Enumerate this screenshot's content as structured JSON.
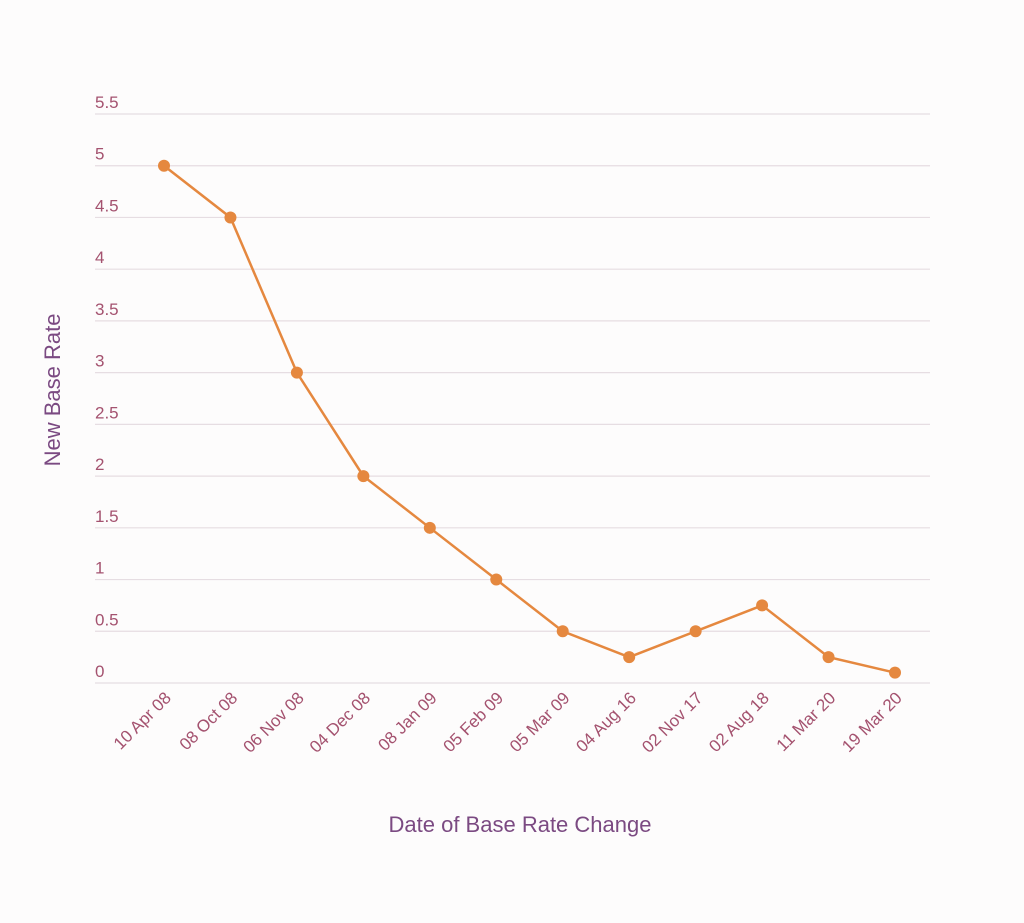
{
  "chart_data": {
    "type": "line",
    "title": "",
    "xlabel": "Date of Base Rate Change",
    "ylabel": "New Base Rate",
    "categories": [
      "10 Apr 08",
      "08 Oct 08",
      "06 Nov 08",
      "04 Dec 08",
      "08 Jan 09",
      "05 Feb 09",
      "05 Mar 09",
      "04 Aug 16",
      "02 Nov 17",
      "02 Aug 18",
      "11 Mar 20",
      "19 Mar 20"
    ],
    "values": [
      5,
      4.5,
      3,
      2,
      1.5,
      1,
      0.5,
      0.25,
      0.5,
      0.75,
      0.25,
      0.1
    ],
    "ylim": [
      0,
      5.5
    ],
    "yticks": [
      "0",
      "0.5",
      "1",
      "1.5",
      "2",
      "2.5",
      "3",
      "3.5",
      "4",
      "4.5",
      "5",
      "5.5"
    ],
    "grid": true,
    "legend": "none",
    "colors": {
      "line": "#e5883f",
      "grid": "#e6dde2",
      "tick_label": "#a4526f",
      "axis_title": "#7b4a82"
    }
  }
}
